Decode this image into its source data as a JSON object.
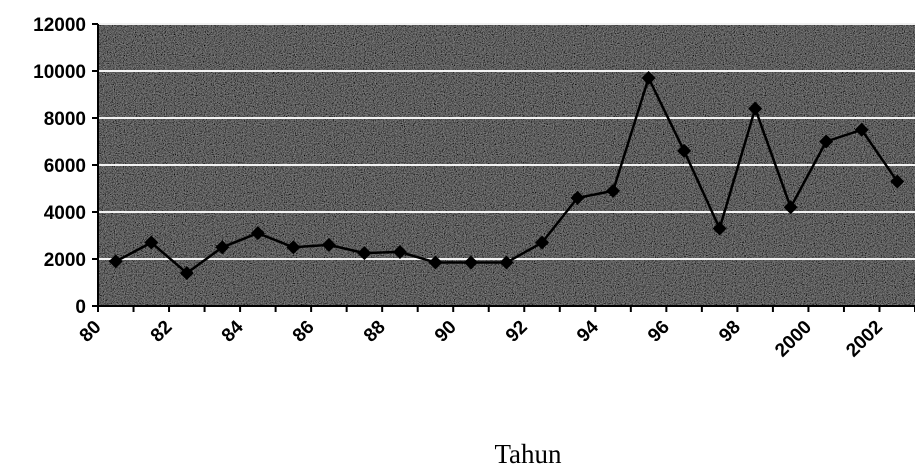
{
  "chart_data": {
    "type": "line",
    "title": "",
    "xlabel": "Tahun",
    "ylabel": "",
    "ylim": [
      0,
      12000
    ],
    "yticks": [
      "0",
      "2000",
      "4000",
      "6000",
      "8000",
      "10000",
      "12000"
    ],
    "xtick_labels": [
      "80",
      "82",
      "84",
      "86",
      "88",
      "90",
      "92",
      "94",
      "96",
      "98",
      "2000",
      "2002"
    ],
    "grid": true,
    "x": [
      1980,
      1981,
      1982,
      1983,
      1984,
      1985,
      1986,
      1987,
      1988,
      1989,
      1990,
      1991,
      1992,
      1993,
      1994,
      1995,
      1996,
      1997,
      1998,
      1999,
      2000,
      2001,
      2002
    ],
    "series": [
      {
        "values": [
          1900,
          2700,
          1400,
          2500,
          3100,
          2500,
          2600,
          2250,
          2300,
          1850,
          1850,
          1850,
          2700,
          4600,
          4900,
          9700,
          6600,
          3300,
          8400,
          4200,
          7000,
          7500,
          5300
        ]
      }
    ],
    "colors": {
      "plot_bg": "#8a8a8a",
      "line": "#000000",
      "grid": "#f2f2f2"
    }
  }
}
